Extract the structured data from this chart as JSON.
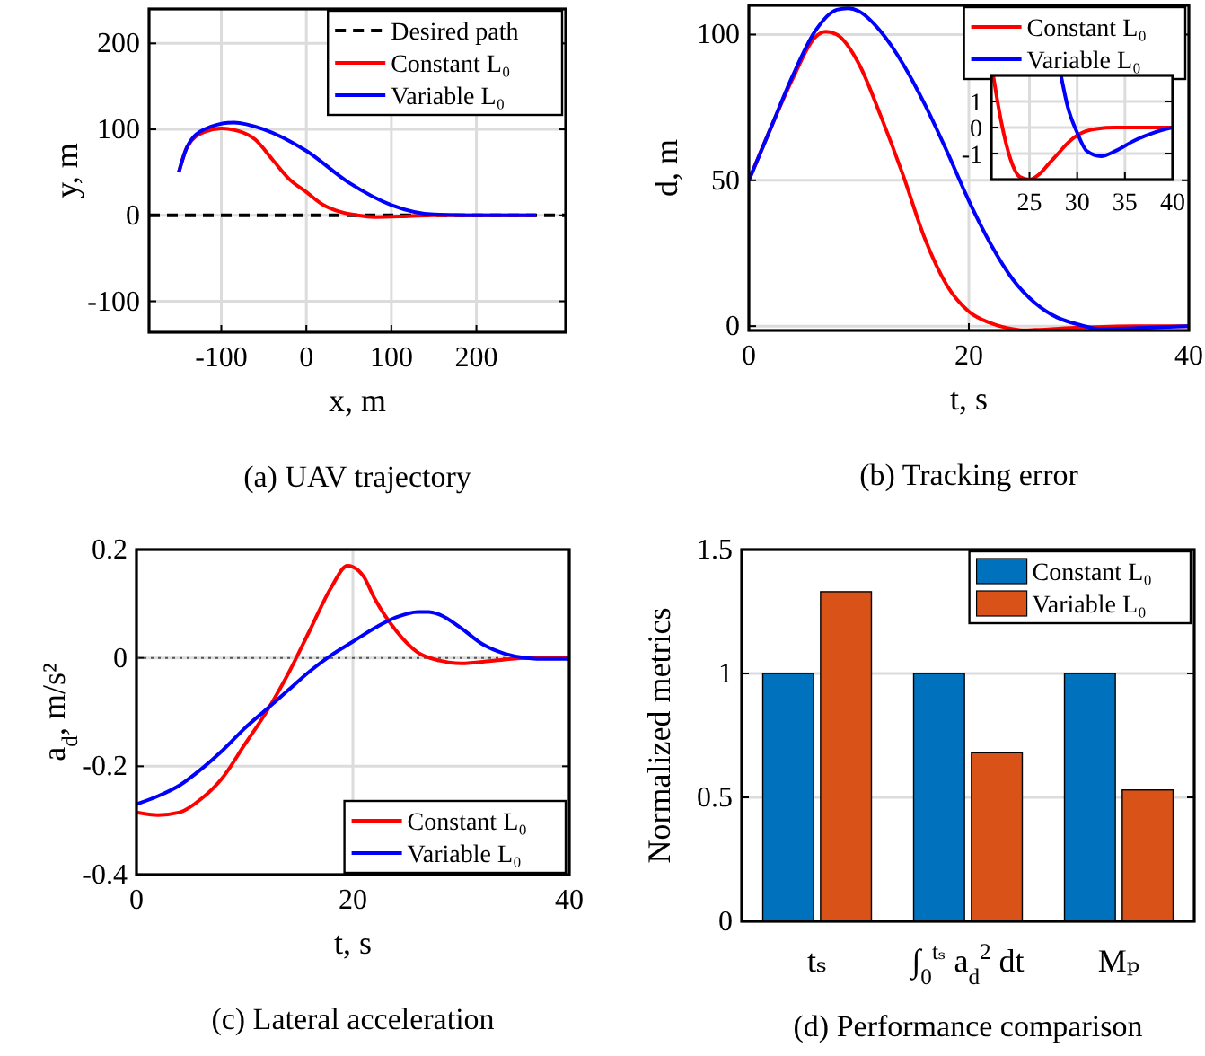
{
  "chart_data": [
    {
      "type": "line",
      "title": "(a) UAV trajectory",
      "xlabel": "x, m",
      "ylabel": "y, m",
      "xlim": [
        -185,
        305
      ],
      "ylim": [
        -136,
        240
      ],
      "xticks": [
        -100,
        0,
        100,
        200
      ],
      "yticks": [
        -100,
        0,
        100,
        200
      ],
      "grid": true,
      "legend": "top right",
      "series": [
        {
          "name": "Desired path",
          "color": "#000000",
          "line_style": "dashed",
          "x": [
            -185,
            305
          ],
          "values": [
            0,
            0
          ]
        },
        {
          "name": "Constant L₀",
          "color": "#ff0000",
          "x": [
            -150,
            -140,
            -120,
            -100,
            -80,
            -60,
            -40,
            -20,
            0,
            20,
            40,
            60,
            80,
            120,
            150,
            270
          ],
          "values": [
            50,
            80,
            97,
            101,
            98,
            88,
            65,
            42,
            27,
            12,
            4,
            0,
            -2,
            -1,
            0,
            0
          ]
        },
        {
          "name": "Variable L₀",
          "color": "#0000ff",
          "x": [
            -150,
            -140,
            -120,
            -85,
            -50,
            0,
            50,
            100,
            150,
            200,
            270
          ],
          "values": [
            50,
            80,
            100,
            108,
            100,
            75,
            38,
            12,
            1,
            0,
            0
          ]
        }
      ]
    },
    {
      "type": "line",
      "title": "(b) Tracking error",
      "xlabel": "t, s",
      "ylabel": "d, m",
      "xlim": [
        0,
        40
      ],
      "ylim": [
        -1.5,
        110
      ],
      "xticks": [
        0,
        20,
        40
      ],
      "yticks": [
        0,
        50,
        100
      ],
      "grid": true,
      "legend": "top right",
      "series": [
        {
          "name": "Constant L₀",
          "color": "#ff0000",
          "x": [
            0,
            2,
            4,
            6,
            7,
            8,
            10,
            12,
            14,
            16,
            18,
            20,
            22,
            24,
            25,
            26,
            30,
            35,
            40
          ],
          "values": [
            50,
            68,
            85,
            99,
            101,
            100,
            90,
            72,
            52,
            30,
            14,
            5,
            1,
            -1,
            -1.4,
            -1.3,
            -0.5,
            0,
            0
          ]
        },
        {
          "name": "Variable L₀",
          "color": "#0000ff",
          "x": [
            0,
            2,
            4,
            6,
            8,
            9,
            10,
            12,
            14,
            16,
            18,
            20,
            22,
            24,
            26,
            28,
            30,
            32,
            35,
            40
          ],
          "values": [
            50,
            68,
            86,
            101,
            108.5,
            109,
            108,
            101,
            90,
            76,
            60,
            43,
            28,
            16,
            8,
            3,
            0.5,
            -1,
            -0.7,
            0
          ]
        }
      ]
    },
    {
      "type": "line",
      "xlim": [
        21,
        40
      ],
      "ylim": [
        -2,
        2
      ],
      "xticks": [
        25,
        30,
        35,
        40
      ],
      "yticks": [
        -1,
        0,
        1
      ],
      "grid": true,
      "series": [
        {
          "color": "#ff0000",
          "x": [
            21.2,
            22,
            23,
            24,
            25,
            26,
            27,
            28,
            29,
            30,
            32,
            34,
            36,
            40
          ],
          "values": [
            2,
            0.3,
            -1.2,
            -1.9,
            -2,
            -1.8,
            -1.4,
            -1,
            -0.6,
            -0.3,
            -0.05,
            0,
            0,
            0
          ]
        },
        {
          "color": "#0000ff",
          "x": [
            28.3,
            29,
            30,
            31,
            32.5,
            34,
            36,
            38,
            40
          ],
          "values": [
            2,
            0.8,
            -0.2,
            -0.9,
            -1.1,
            -0.9,
            -0.5,
            -0.2,
            0
          ]
        }
      ]
    },
    {
      "type": "line",
      "title": "(c) Lateral acceleration",
      "xlabel": "t, s",
      "ylabel": "a$_{d}$, m/s²",
      "xlim": [
        0,
        40
      ],
      "ylim": [
        -0.4,
        0.2
      ],
      "xticks": [
        0,
        20,
        40
      ],
      "yticks": [
        -0.4,
        -0.2,
        0,
        0.2
      ],
      "grid": true,
      "legend": "bottom right",
      "ref_lines": [
        {
          "axis": "y",
          "value": 0,
          "color": "#555555",
          "line_style": "dotted"
        }
      ],
      "series": [
        {
          "name": "Constant L₀",
          "color": "#ff0000",
          "x": [
            0,
            2,
            4,
            6,
            8,
            10,
            12,
            14,
            16,
            18,
            19.5,
            20,
            21,
            22,
            24,
            26,
            28,
            30,
            33,
            36,
            40
          ],
          "values": [
            -0.285,
            -0.29,
            -0.285,
            -0.26,
            -0.22,
            -0.16,
            -0.1,
            -0.03,
            0.05,
            0.13,
            0.17,
            0.168,
            0.15,
            0.11,
            0.05,
            0.01,
            -0.005,
            -0.01,
            -0.005,
            0,
            0
          ]
        },
        {
          "name": "Variable L₀",
          "color": "#0000ff",
          "x": [
            0,
            2,
            4,
            6,
            8,
            10,
            12,
            14,
            16,
            18,
            20,
            22,
            24,
            26,
            27,
            28,
            30,
            32,
            34,
            36,
            38,
            40
          ],
          "values": [
            -0.27,
            -0.255,
            -0.235,
            -0.205,
            -0.17,
            -0.13,
            -0.095,
            -0.06,
            -0.025,
            0.005,
            0.03,
            0.055,
            0.075,
            0.085,
            0.085,
            0.08,
            0.055,
            0.025,
            0.008,
            0,
            -0.002,
            -0.002
          ]
        }
      ]
    },
    {
      "type": "bar",
      "title": "(d) Performance comparison",
      "ylabel": "Normalized metrics",
      "categories": [
        "tₛ",
        "∫$_{0}$$^{tₛ}$ a$_{d}$$^{2}$ dt",
        "Mₚ"
      ],
      "ylim": [
        0,
        1.5
      ],
      "yticks": [
        0,
        0.5,
        1,
        1.5
      ],
      "grid": true,
      "legend": "top right",
      "series": [
        {
          "name": "Constant L₀",
          "color": "#0072bd",
          "values": [
            1,
            1,
            1
          ]
        },
        {
          "name": "Variable L₀",
          "color": "#d95319",
          "values": [
            1.33,
            0.68,
            0.53
          ]
        }
      ]
    }
  ]
}
